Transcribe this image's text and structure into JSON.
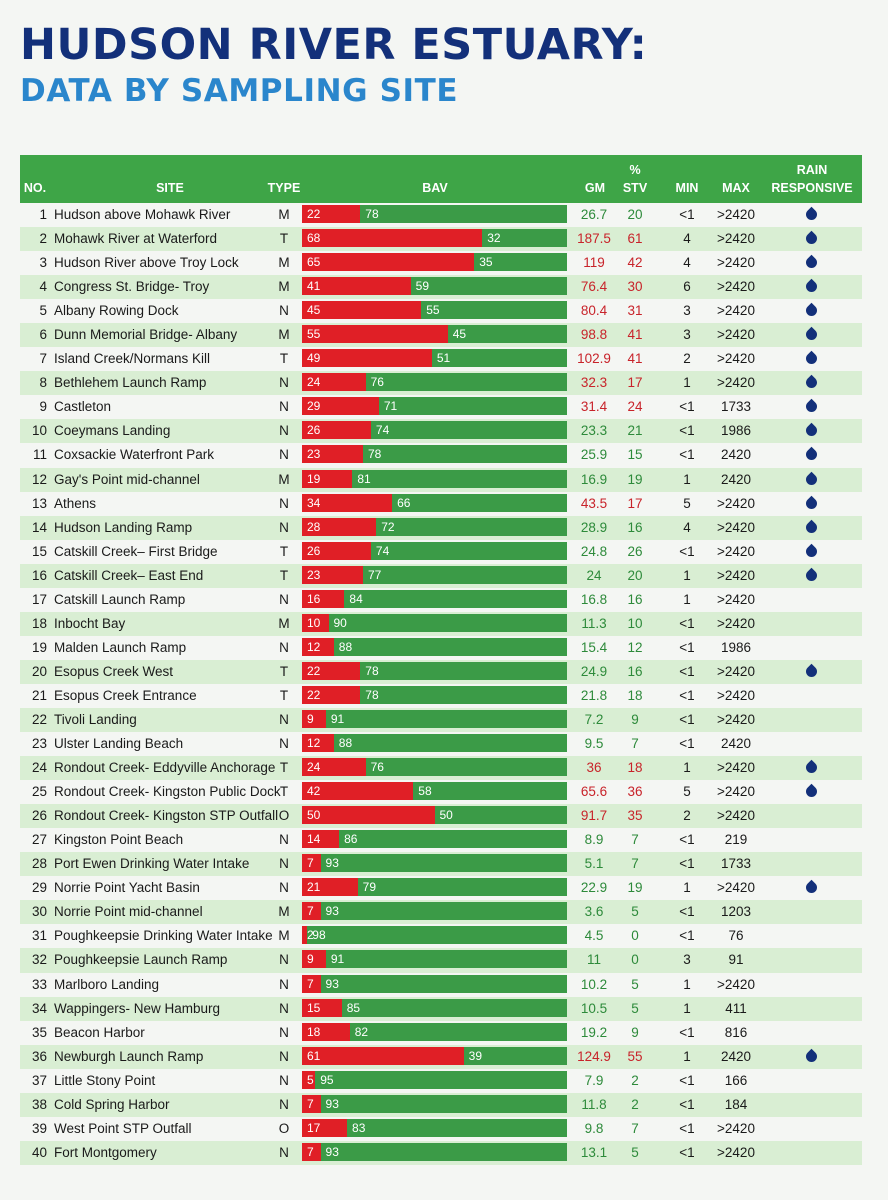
{
  "title": "HUDSON RIVER ESTUARY:",
  "subtitle": "DATA BY SAMPLING SITE",
  "headers": {
    "no": "NO.",
    "site": "SITE",
    "type": "TYPE",
    "bav": "BAV",
    "gm": "GM",
    "stv_pct": "%",
    "stv": "STV",
    "min": "MIN",
    "max": "MAX",
    "rain1": "RAIN",
    "rain2": "RESPONSIVE"
  },
  "colors": {
    "header_green": "#3ea547",
    "bar_green": "#3b9b47",
    "bar_red": "#e01f26",
    "drop_blue": "#13307a",
    "row_shade": "#d9eed3"
  },
  "rows": [
    {
      "no": "1",
      "site": "Hudson above Mohawk River",
      "type": "M",
      "red": "22",
      "green": "78",
      "gm": "26.7",
      "stv": "20",
      "min": "<1",
      "max": ">2420",
      "rain": true,
      "pass": true
    },
    {
      "no": "2",
      "site": "Mohawk River at Waterford",
      "type": "T",
      "red": "68",
      "green": "32",
      "gm": "187.5",
      "stv": "61",
      "min": "4",
      "max": ">2420",
      "rain": true,
      "pass": false
    },
    {
      "no": "3",
      "site": "Hudson River above Troy Lock",
      "type": "M",
      "red": "65",
      "green": "35",
      "gm": "119",
      "stv": "42",
      "min": "4",
      "max": ">2420",
      "rain": true,
      "pass": false
    },
    {
      "no": "4",
      "site": "Congress St. Bridge- Troy",
      "type": "M",
      "red": "41",
      "green": "59",
      "gm": "76.4",
      "stv": "30",
      "min": "6",
      "max": ">2420",
      "rain": true,
      "pass": false
    },
    {
      "no": "5",
      "site": "Albany Rowing Dock",
      "type": "N",
      "red": "45",
      "green": "55",
      "gm": "80.4",
      "stv": "31",
      "min": "3",
      "max": ">2420",
      "rain": true,
      "pass": false
    },
    {
      "no": "6",
      "site": "Dunn Memorial Bridge- Albany",
      "type": "M",
      "red": "55",
      "green": "45",
      "gm": "98.8",
      "stv": "41",
      "min": "3",
      "max": ">2420",
      "rain": true,
      "pass": false
    },
    {
      "no": "7",
      "site": "Island Creek/Normans Kill",
      "type": "T",
      "red": "49",
      "green": "51",
      "gm": "102.9",
      "stv": "41",
      "min": "2",
      "max": ">2420",
      "rain": true,
      "pass": false
    },
    {
      "no": "8",
      "site": "Bethlehem Launch Ramp",
      "type": "N",
      "red": "24",
      "green": "76",
      "gm": "32.3",
      "stv": "17",
      "min": "1",
      "max": ">2420",
      "rain": true,
      "pass": false
    },
    {
      "no": "9",
      "site": "Castleton",
      "type": "N",
      "red": "29",
      "green": "71",
      "gm": "31.4",
      "stv": "24",
      "min": "<1",
      "max": "1733",
      "rain": true,
      "pass": false
    },
    {
      "no": "10",
      "site": "Coeymans Landing",
      "type": "N",
      "red": "26",
      "green": "74",
      "gm": "23.3",
      "stv": "21",
      "min": "<1",
      "max": "1986",
      "rain": true,
      "pass": true
    },
    {
      "no": "11",
      "site": "Coxsackie Waterfront Park",
      "type": "N",
      "red": "23",
      "green": "78",
      "gm": "25.9",
      "stv": "15",
      "min": "<1",
      "max": "2420",
      "rain": true,
      "pass": true
    },
    {
      "no": "12",
      "site": "Gay's Point mid-channel",
      "type": "M",
      "red": "19",
      "green": "81",
      "gm": "16.9",
      "stv": "19",
      "min": "1",
      "max": "2420",
      "rain": true,
      "pass": true
    },
    {
      "no": "13",
      "site": "Athens",
      "type": "N",
      "red": "34",
      "green": "66",
      "gm": "43.5",
      "stv": "17",
      "min": "5",
      "max": ">2420",
      "rain": true,
      "pass": false
    },
    {
      "no": "14",
      "site": "Hudson Landing Ramp",
      "type": "N",
      "red": "28",
      "green": "72",
      "gm": "28.9",
      "stv": "16",
      "min": "4",
      "max": ">2420",
      "rain": true,
      "pass": true
    },
    {
      "no": "15",
      "site": "Catskill Creek– First Bridge",
      "type": "T",
      "red": "26",
      "green": "74",
      "gm": "24.8",
      "stv": "26",
      "min": "<1",
      "max": ">2420",
      "rain": true,
      "pass": true
    },
    {
      "no": "16",
      "site": "Catskill Creek– East End",
      "type": "T",
      "red": "23",
      "green": "77",
      "gm": "24",
      "stv": "20",
      "min": "1",
      "max": ">2420",
      "rain": true,
      "pass": true
    },
    {
      "no": "17",
      "site": "Catskill Launch Ramp",
      "type": "N",
      "red": "16",
      "green": "84",
      "gm": "16.8",
      "stv": "16",
      "min": "1",
      "max": ">2420",
      "rain": false,
      "pass": true
    },
    {
      "no": "18",
      "site": "Inbocht Bay",
      "type": "M",
      "red": "10",
      "green": "90",
      "gm": "11.3",
      "stv": "10",
      "min": "<1",
      "max": ">2420",
      "rain": false,
      "pass": true
    },
    {
      "no": "19",
      "site": "Malden Launch Ramp",
      "type": "N",
      "red": "12",
      "green": "88",
      "gm": "15.4",
      "stv": "12",
      "min": "<1",
      "max": "1986",
      "rain": false,
      "pass": true
    },
    {
      "no": "20",
      "site": "Esopus Creek West",
      "type": "T",
      "red": "22",
      "green": "78",
      "gm": "24.9",
      "stv": "16",
      "min": "<1",
      "max": ">2420",
      "rain": true,
      "pass": true
    },
    {
      "no": "21",
      "site": "Esopus Creek Entrance",
      "type": "T",
      "red": "22",
      "green": "78",
      "gm": "21.8",
      "stv": "18",
      "min": "<1",
      "max": ">2420",
      "rain": false,
      "pass": true
    },
    {
      "no": "22",
      "site": "Tivoli Landing",
      "type": "N",
      "red": "9",
      "green": "91",
      "gm": "7.2",
      "stv": "9",
      "min": "<1",
      "max": ">2420",
      "rain": false,
      "pass": true
    },
    {
      "no": "23",
      "site": "Ulster Landing Beach",
      "type": "N",
      "red": "12",
      "green": "88",
      "gm": "9.5",
      "stv": "7",
      "min": "<1",
      "max": "2420",
      "rain": false,
      "pass": true
    },
    {
      "no": "24",
      "site": "Rondout Creek- Eddyville Anchorage",
      "type": "T",
      "red": "24",
      "green": "76",
      "gm": "36",
      "stv": "18",
      "min": "1",
      "max": ">2420",
      "rain": true,
      "pass": false
    },
    {
      "no": "25",
      "site": "Rondout Creek- Kingston Public Dock",
      "type": "T",
      "red": "42",
      "green": "58",
      "gm": "65.6",
      "stv": "36",
      "min": "5",
      "max": ">2420",
      "rain": true,
      "pass": false
    },
    {
      "no": "26",
      "site": "Rondout Creek- Kingston STP Outfall",
      "type": "O",
      "red": "50",
      "green": "50",
      "gm": "91.7",
      "stv": "35",
      "min": "2",
      "max": ">2420",
      "rain": false,
      "pass": false
    },
    {
      "no": "27",
      "site": "Kingston Point Beach",
      "type": "N",
      "red": "14",
      "green": "86",
      "gm": "8.9",
      "stv": "7",
      "min": "<1",
      "max": "219",
      "rain": false,
      "pass": true
    },
    {
      "no": "28",
      "site": "Port Ewen Drinking Water Intake",
      "type": "N",
      "red": "7",
      "green": "93",
      "gm": "5.1",
      "stv": "7",
      "min": "<1",
      "max": "1733",
      "rain": false,
      "pass": true
    },
    {
      "no": "29",
      "site": "Norrie Point Yacht Basin",
      "type": "N",
      "red": "21",
      "green": "79",
      "gm": "22.9",
      "stv": "19",
      "min": "1",
      "max": ">2420",
      "rain": true,
      "pass": true
    },
    {
      "no": "30",
      "site": "Norrie Point mid-channel",
      "type": "M",
      "red": "7",
      "green": "93",
      "gm": "3.6",
      "stv": "5",
      "min": "<1",
      "max": "1203",
      "rain": false,
      "pass": true
    },
    {
      "no": "31",
      "site": "Poughkeepsie Drinking Water Intake",
      "type": "M",
      "red": "2",
      "green": "98",
      "gm": "4.5",
      "stv": "0",
      "min": "<1",
      "max": "76",
      "rain": false,
      "pass": true
    },
    {
      "no": "32",
      "site": "Poughkeepsie Launch Ramp",
      "type": "N",
      "red": "9",
      "green": "91",
      "gm": "11",
      "stv": "0",
      "min": "3",
      "max": "91",
      "rain": false,
      "pass": true
    },
    {
      "no": "33",
      "site": "Marlboro Landing",
      "type": "N",
      "red": "7",
      "green": "93",
      "gm": "10.2",
      "stv": "5",
      "min": "1",
      "max": ">2420",
      "rain": false,
      "pass": true
    },
    {
      "no": "34",
      "site": "Wappingers- New Hamburg",
      "type": "N",
      "red": "15",
      "green": "85",
      "gm": "10.5",
      "stv": "5",
      "min": "1",
      "max": "411",
      "rain": false,
      "pass": true
    },
    {
      "no": "35",
      "site": "Beacon Harbor",
      "type": "N",
      "red": "18",
      "green": "82",
      "gm": "19.2",
      "stv": "9",
      "min": "<1",
      "max": "816",
      "rain": false,
      "pass": true
    },
    {
      "no": "36",
      "site": "Newburgh Launch Ramp",
      "type": "N",
      "red": "61",
      "green": "39",
      "gm": "124.9",
      "stv": "55",
      "min": "1",
      "max": "2420",
      "rain": true,
      "pass": false
    },
    {
      "no": "37",
      "site": "Little Stony Point",
      "type": "N",
      "red": "5",
      "green": "95",
      "gm": "7.9",
      "stv": "2",
      "min": "<1",
      "max": "166",
      "rain": false,
      "pass": true
    },
    {
      "no": "38",
      "site": "Cold Spring Harbor",
      "type": "N",
      "red": "7",
      "green": "93",
      "gm": "11.8",
      "stv": "2",
      "min": "<1",
      "max": "184",
      "rain": false,
      "pass": true
    },
    {
      "no": "39",
      "site": "West Point STP Outfall",
      "type": "O",
      "red": "17",
      "green": "83",
      "gm": "9.8",
      "stv": "7",
      "min": "<1",
      "max": ">2420",
      "rain": false,
      "pass": true
    },
    {
      "no": "40",
      "site": "Fort Montgomery",
      "type": "N",
      "red": "7",
      "green": "93",
      "gm": "13.1",
      "stv": "5",
      "min": "<1",
      "max": ">2420",
      "rain": false,
      "pass": true
    }
  ]
}
